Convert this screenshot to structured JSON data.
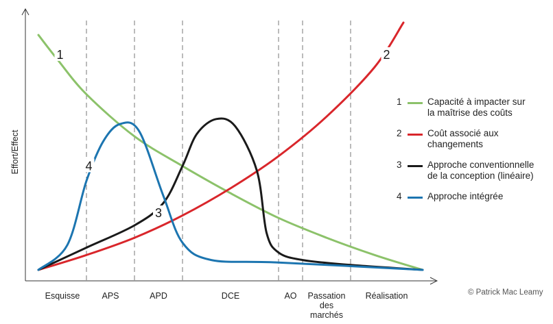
{
  "chart_data": {
    "type": "line",
    "ylabel": "Effort/Effect",
    "xlabel": "",
    "phases": [
      "Esquisse",
      "APS",
      "APD",
      "DCE",
      "AO",
      "Passation\ndes\nmarchés",
      "Réalisation"
    ],
    "phase_boundaries": [
      0,
      1,
      2,
      3,
      5,
      5.5,
      6.5,
      8
    ],
    "x_range": [
      0,
      8
    ],
    "y_range": [
      0,
      100
    ],
    "grid": false,
    "legend_position": "right",
    "series": [
      {
        "number": "1",
        "label": "Capacité à impacter sur\nla maîtrise des coûts",
        "color": "#8cc26a",
        "points": [
          [
            0,
            95
          ],
          [
            0.4,
            85
          ],
          [
            1,
            71
          ],
          [
            2,
            54
          ],
          [
            3,
            42
          ],
          [
            4,
            31
          ],
          [
            5,
            21
          ],
          [
            6,
            13
          ],
          [
            7,
            6
          ],
          [
            8,
            0
          ]
        ]
      },
      {
        "number": "2",
        "label": "Coût associé aux\nchangements",
        "color": "#d9262b",
        "points": [
          [
            0,
            0
          ],
          [
            1,
            6
          ],
          [
            2,
            13
          ],
          [
            3,
            22
          ],
          [
            4,
            33
          ],
          [
            5,
            46
          ],
          [
            6,
            62
          ],
          [
            7,
            82
          ],
          [
            7.6,
            100
          ]
        ]
      },
      {
        "number": "3",
        "label": "Approche conventionnelle\nde la conception (linéaire)",
        "color": "#1a1a1a",
        "points": [
          [
            0,
            0
          ],
          [
            1,
            9
          ],
          [
            2,
            18
          ],
          [
            2.6,
            27
          ],
          [
            3,
            42
          ],
          [
            3.3,
            55
          ],
          [
            3.7,
            61
          ],
          [
            4.1,
            58
          ],
          [
            4.55,
            40
          ],
          [
            4.75,
            15
          ],
          [
            5,
            7
          ],
          [
            5.5,
            4
          ],
          [
            6.5,
            2
          ],
          [
            8,
            0
          ]
        ]
      },
      {
        "number": "4",
        "label": "Approche intégrée",
        "color": "#1c75b0",
        "points": [
          [
            0,
            0
          ],
          [
            0.6,
            10
          ],
          [
            1,
            36
          ],
          [
            1.35,
            52
          ],
          [
            1.7,
            59
          ],
          [
            2.1,
            56
          ],
          [
            2.6,
            30
          ],
          [
            3,
            11
          ],
          [
            3.6,
            4
          ],
          [
            5,
            3
          ],
          [
            8,
            0
          ]
        ]
      }
    ],
    "curve_labels": [
      {
        "text": "1",
        "x": 0.45,
        "y": 87
      },
      {
        "text": "2",
        "x": 7.25,
        "y": 87
      },
      {
        "text": "3",
        "x": 2.5,
        "y": 23
      },
      {
        "text": "4",
        "x": 1.05,
        "y": 42
      }
    ]
  },
  "credit": "© Patrick Mac Leamy"
}
